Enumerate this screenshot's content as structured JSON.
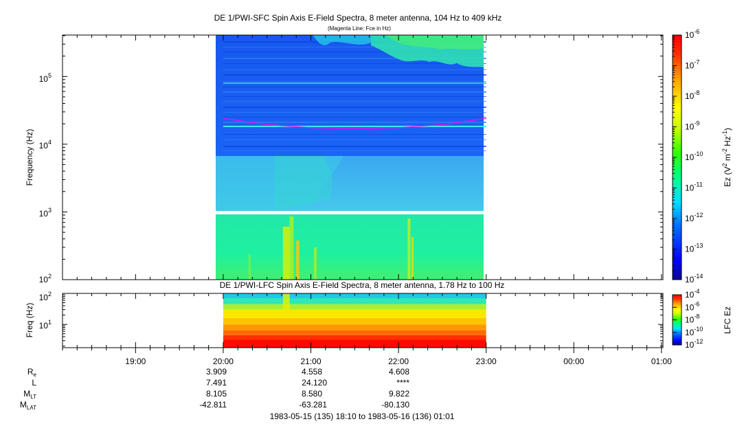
{
  "chart_data": [
    {
      "type": "heatmap",
      "title": "DE 1/PWI-SFC  Spin Axis E-Field Spectra, 8 meter antenna, 104 Hz to 409 kHz",
      "subtitle": "(Magenta Line: Fce in Hz)",
      "ylabel": "Frequency (Hz)",
      "y_scale": "log",
      "ylim": [
        100,
        409000
      ],
      "y_ticks": [
        {
          "base": "10",
          "exp": "2",
          "value": 100
        },
        {
          "base": "10",
          "exp": "3",
          "value": 1000
        },
        {
          "base": "10",
          "exp": "4",
          "value": 10000
        },
        {
          "base": "10",
          "exp": "5",
          "value": 100000
        }
      ],
      "data_time_range": [
        "20:00",
        "23:00"
      ],
      "colorbar": {
        "label_parts": [
          "Ez (V",
          "2",
          " m",
          "-2",
          " Hz",
          "-1",
          ")"
        ],
        "scale": "log",
        "range": [
          1e-14,
          1e-06
        ],
        "ticks": [
          {
            "base": "10",
            "exp": "-6"
          },
          {
            "base": "10",
            "exp": "-7"
          },
          {
            "base": "10",
            "exp": "-8"
          },
          {
            "base": "10",
            "exp": "-9"
          },
          {
            "base": "10",
            "exp": "-10"
          },
          {
            "base": "10",
            "exp": "-11"
          },
          {
            "base": "10",
            "exp": "-12"
          },
          {
            "base": "10",
            "exp": "-13"
          },
          {
            "base": "10",
            "exp": "-14"
          }
        ]
      },
      "fce_line": {
        "color": "#ff00ff",
        "hours": [
          20.0,
          20.5,
          21.0,
          21.5,
          22.0,
          22.5,
          23.0
        ],
        "freq_hz": [
          24000,
          19500,
          17500,
          17000,
          17500,
          19500,
          24000
        ]
      },
      "data_gap_hz": [
        900,
        1050
      ]
    },
    {
      "type": "heatmap",
      "title": "DE 1/PWI-LFC  Spin Axis E-Field Spectra, 8 meter antenna, 1.78 Hz to 100 Hz",
      "ylabel": "Freq (Hz)",
      "y_scale": "log",
      "ylim": [
        1.78,
        100
      ],
      "y_ticks": [
        {
          "base": "10",
          "exp": "1",
          "value": 10
        },
        {
          "base": "10",
          "exp": "2",
          "value": 100
        }
      ],
      "data_time_range": [
        "20:00",
        "23:00"
      ],
      "colorbar": {
        "label": "LFC Ez",
        "scale": "log",
        "range": [
          1e-12,
          0.0001
        ],
        "ticks": [
          {
            "base": "10",
            "exp": "-4"
          },
          {
            "base": "10",
            "exp": "-6"
          },
          {
            "base": "10",
            "exp": "-8"
          },
          {
            "base": "10",
            "exp": "-10"
          },
          {
            "base": "10",
            "exp": "-12"
          }
        ]
      }
    }
  ],
  "time_axis": {
    "ticks": [
      "19:00",
      "20:00",
      "21:00",
      "22:00",
      "23:00",
      "00:00",
      "01:00"
    ]
  },
  "ephemeris": {
    "rows": [
      {
        "label": "R",
        "sub": "e",
        "values": [
          "3.909",
          "4.558",
          "4.608"
        ]
      },
      {
        "label": "L",
        "sub": "",
        "values": [
          "7.491",
          "24.120",
          "****"
        ]
      },
      {
        "label": "M",
        "sub": "LT",
        "values": [
          "8.105",
          "8.580",
          "9.822"
        ]
      },
      {
        "label": "M",
        "sub": "LAT",
        "values": [
          "-42.811",
          "-63.281",
          "-80.130"
        ]
      }
    ]
  },
  "footer": {
    "time_range": "1983-05-15 (135) 18:10 to 1983-05-16 (136) 01:01"
  }
}
